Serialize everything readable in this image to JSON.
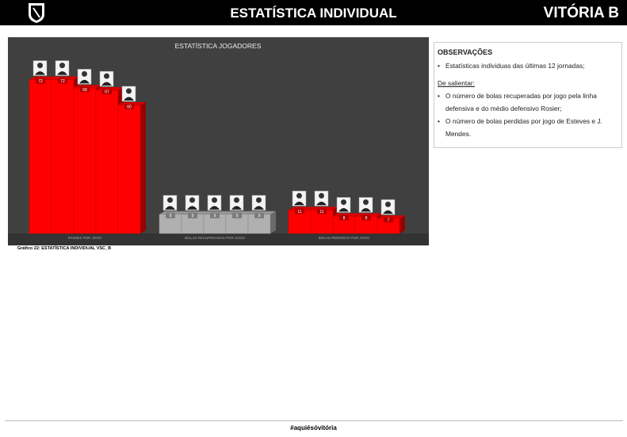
{
  "header": {
    "title": "ESTATÍSTICA INDIVIDUAL",
    "team": "VITÓRIA B"
  },
  "chart_data": {
    "type": "bar",
    "title": "ESTATÍSTICA JOGADORES",
    "categories": [
      "PASSES POR JOGO",
      "BOLAS RECUPERADAS POR JOGO",
      "BOLAS PERDIDAS POR JOGO"
    ],
    "values": [
      [
        72,
        72,
        68,
        67,
        60
      ],
      [
        9,
        9,
        9,
        9,
        9
      ],
      [
        11,
        11,
        8,
        8,
        7
      ]
    ],
    "colors": [
      "#ff0000",
      "#b0b0b0",
      "#ff0000"
    ]
  },
  "caption": "Gráfico 22: ESTATÍSTICA INDIVIDUAL VSC_B",
  "observations": {
    "title": "OBSERVAÇÕES",
    "items": [
      "Estatísticas individuas das últimas 12 jornadas;"
    ],
    "highlight_title": "De salientar:",
    "highlights": [
      "O número de bolas  recuperadas por jogo pela linha defensiva e do médio defensivo Rosier;",
      "O número de bolas perdidas por jogo de Esteves e J. Mendes."
    ]
  },
  "footer": "#aquiésóvitória"
}
